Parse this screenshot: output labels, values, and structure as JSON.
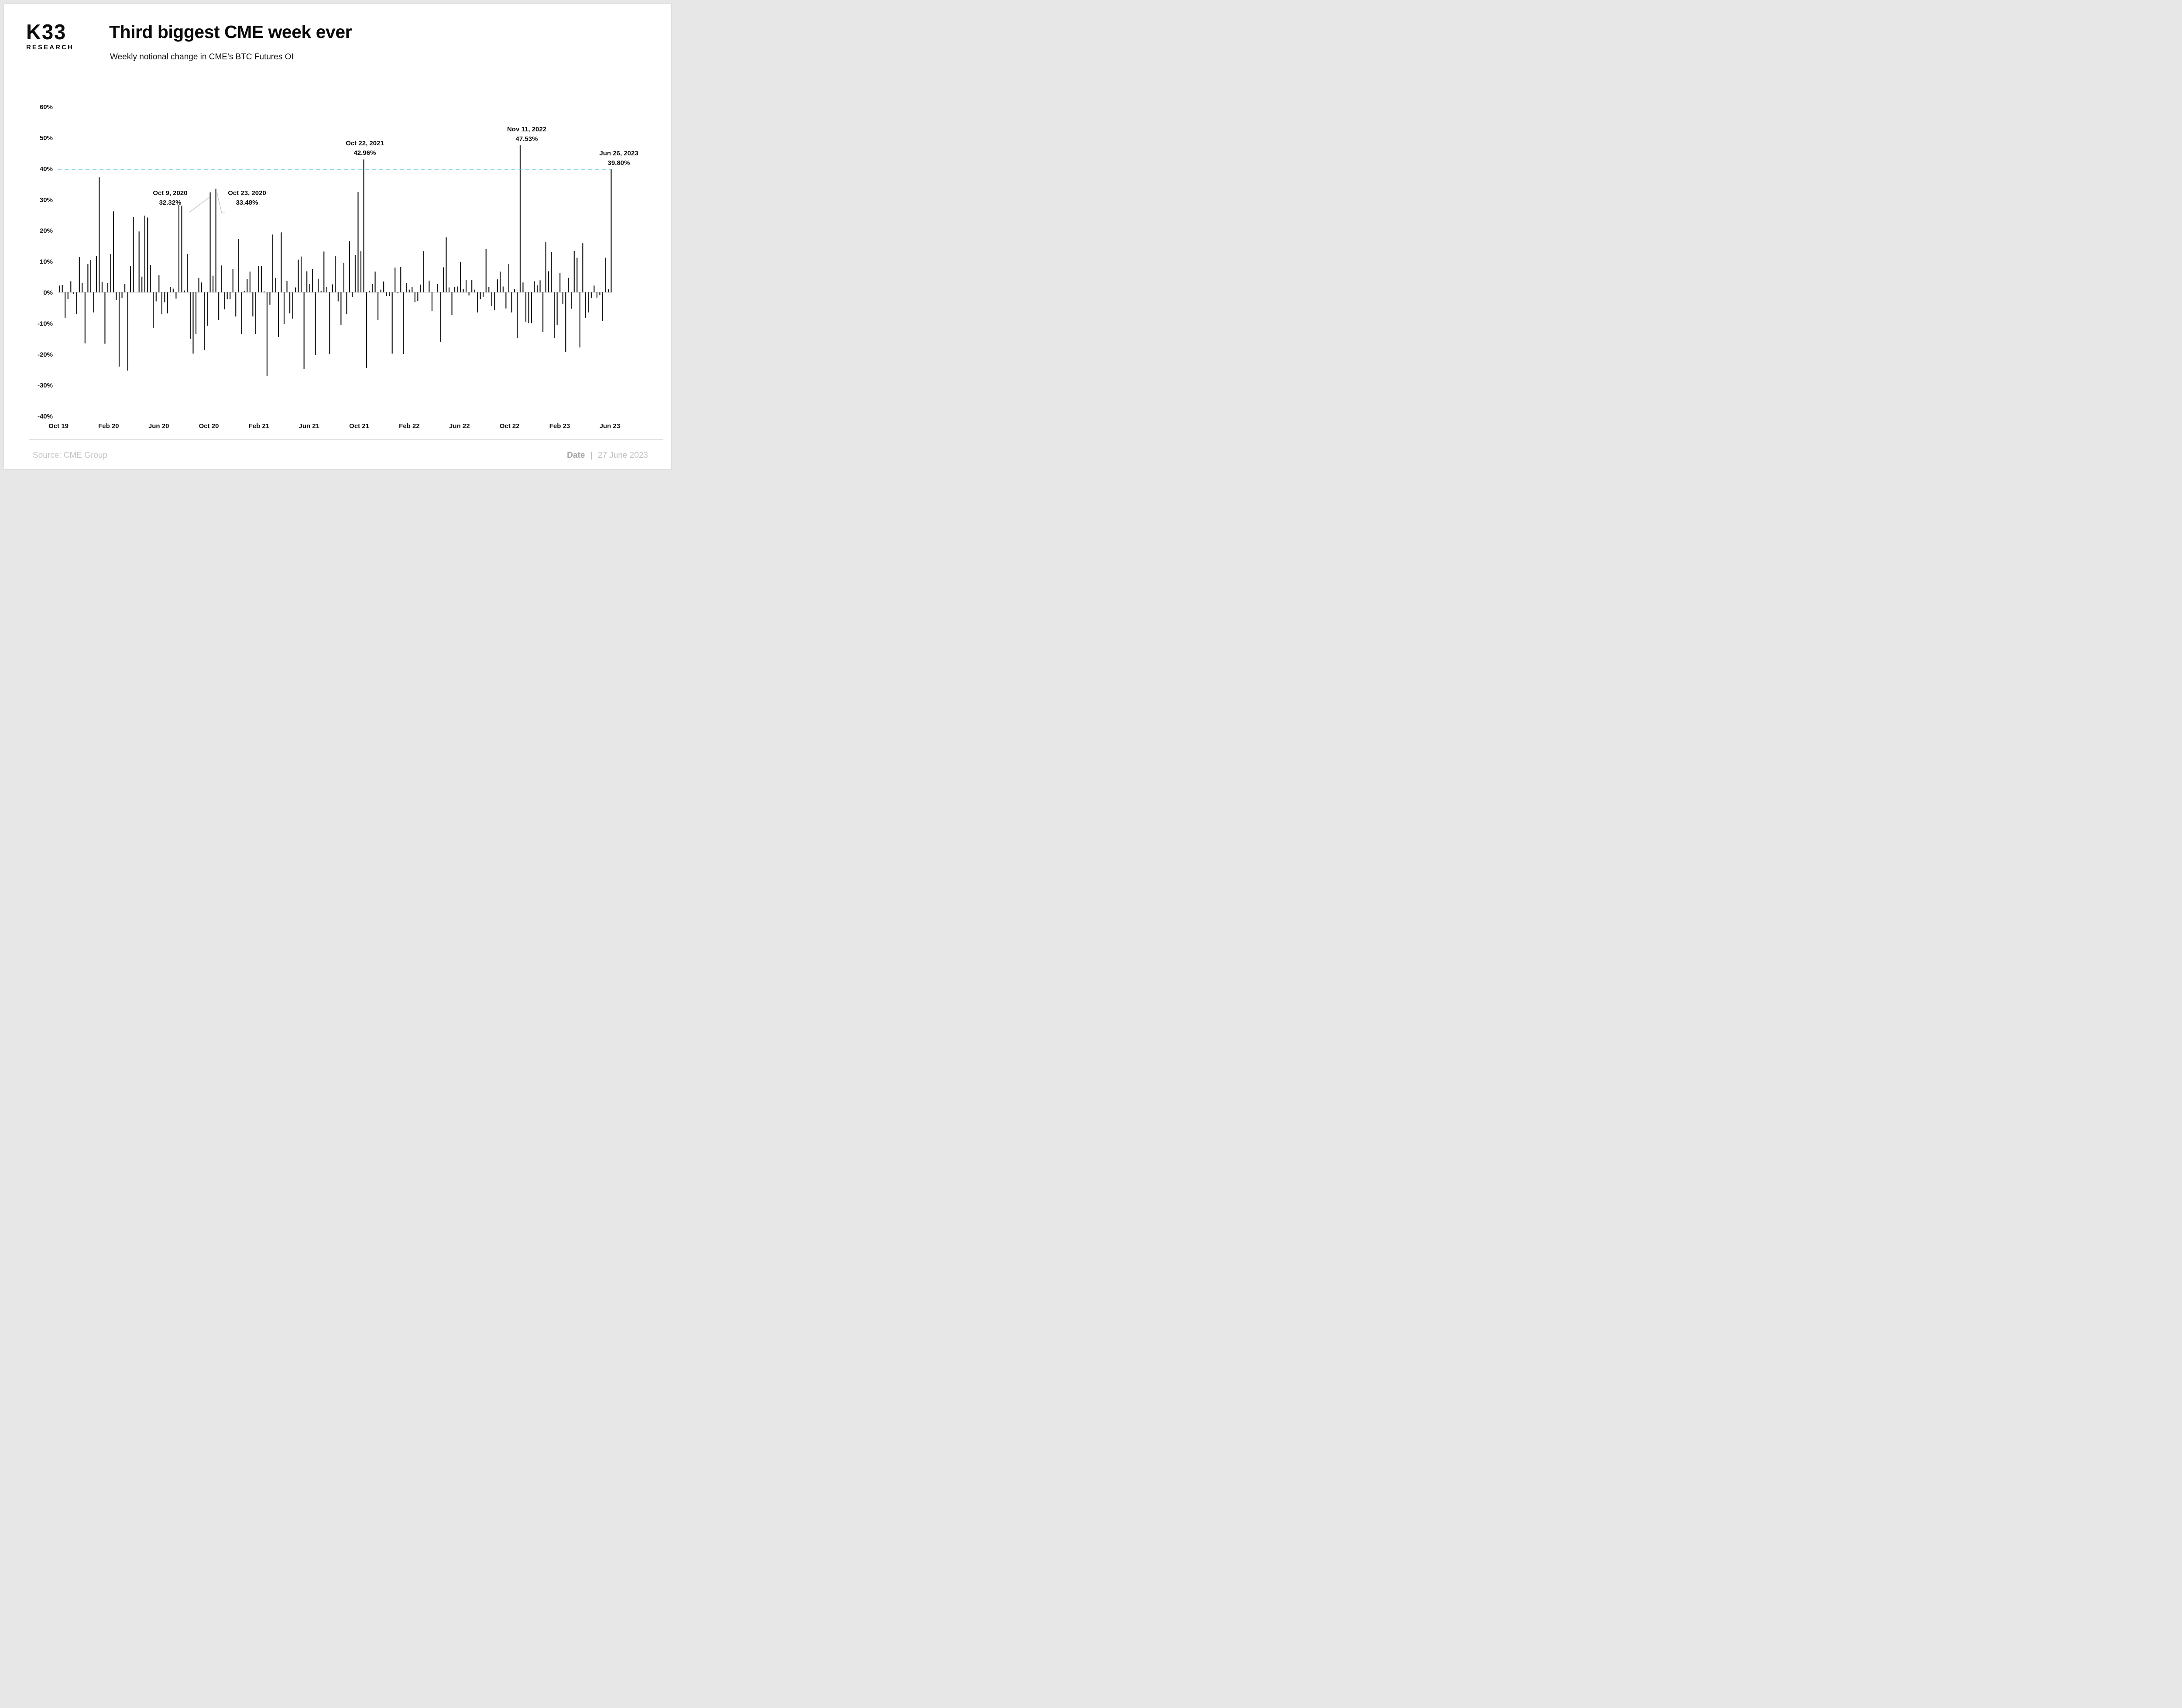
{
  "header": {
    "logo_line1": "K33",
    "logo_line2": "RESEARCH",
    "title": "Third biggest CME week ever",
    "subtitle": "Weekly notional change in CME’s BTC Futures OI"
  },
  "footer": {
    "source": "Source: CME Group",
    "date_label": "Date",
    "separator": "|",
    "date_value": "27 June 2023"
  },
  "chart_data": {
    "type": "bar",
    "title": "Third biggest CME week ever",
    "subtitle": "Weekly notional change in CME's BTC Futures OI",
    "frequency": "weekly",
    "x_tick_labels": [
      "Oct 19",
      "Feb 20",
      "Jun 20",
      "Oct 20",
      "Feb 21",
      "Jun 21",
      "Oct 21",
      "Feb 22",
      "Jun 22",
      "Oct 22",
      "Feb 23",
      "Jun 23"
    ],
    "y_tick_labels": [
      "60%",
      "50%",
      "40%",
      "30%",
      "20%",
      "10%",
      "0%",
      "-10%",
      "-20%",
      "-30%",
      "-40%"
    ],
    "y_tick_values": [
      60,
      50,
      40,
      30,
      20,
      10,
      0,
      -10,
      -20,
      -30,
      -40
    ],
    "ylim": [
      -40,
      60
    ],
    "grid": false,
    "bar_color": "#191919",
    "reference_line": {
      "value": 39.8,
      "style": "dashed",
      "color": "#55c3e8"
    },
    "values": [
      2.2,
      2.4,
      -8.2,
      -2.2,
      3.6,
      -0.5,
      -7,
      11.4,
      3,
      -16.5,
      9.2,
      10.5,
      -6.5,
      11.8,
      37.2,
      3.4,
      -16.6,
      3,
      12.4,
      26.2,
      -2.5,
      -24,
      -1.8,
      2.7,
      -25.3,
      8.6,
      24.4,
      0,
      19.7,
      5.1,
      24.8,
      24.2,
      8.9,
      -11.5,
      -2.9,
      5.5,
      -7,
      -3.2,
      -6.8,
      1.7,
      1.2,
      -2,
      28.2,
      28,
      0.6,
      12.4,
      -15,
      -19.8,
      -13.5,
      4.7,
      3.2,
      -18.6,
      -10.8,
      32.32,
      5.4,
      33.48,
      -9,
      8.7,
      -5.5,
      -2.2,
      -2.2,
      7.5,
      -7.8,
      17.3,
      -13.5,
      0.4,
      4.3,
      6.7,
      -7.8,
      -13.4,
      8.5,
      8.5,
      0.3,
      -27,
      -4,
      18.7,
      4.7,
      -14.5,
      19.4,
      -10.2,
      3.7,
      -6.8,
      -8.5,
      1.6,
      10.6,
      11.6,
      -24.8,
      6.8,
      2.7,
      7.6,
      -20.3,
      4.4,
      0.5,
      13.2,
      1.8,
      -20,
      2.6,
      11.7,
      -2.9,
      -10.5,
      9.5,
      -7,
      16.5,
      -1.5,
      12.1,
      32.4,
      13.3,
      42.96,
      -24.5,
      0.5,
      2.7,
      6.7,
      -9,
      0.9,
      3.5,
      -1.2,
      -1.2,
      -19.8,
      8,
      -0.3,
      8.2,
      -19.9,
      3.1,
      0.9,
      1.8,
      -3.2,
      -2.8,
      2.5,
      13.3,
      0,
      3.8,
      -6,
      0,
      2.7,
      -16,
      8.1,
      17.8,
      1.6,
      -7.3,
      1.8,
      1.9,
      9.8,
      1,
      4.1,
      -1,
      4,
      0.9,
      -6.5,
      -2.2,
      -1.4,
      14,
      1.8,
      -4.5,
      -5.8,
      4.2,
      6.7,
      1.9,
      -5.2,
      9.2,
      -6.5,
      1,
      -14.8,
      47.53,
      3.2,
      -9.5,
      -10,
      -10,
      3.6,
      2.3,
      3.9,
      -12.8,
      16.2,
      6.8,
      13,
      -14.7,
      -10.5,
      6.3,
      -3.7,
      -19.3,
      4.7,
      -5.3,
      13.4,
      11.2,
      -17.8,
      15.9,
      -8.2,
      -6.5,
      -1.8,
      2.2,
      -1.7,
      -0.9,
      -9.3,
      11.2,
      1,
      39.8
    ],
    "annotations": [
      {
        "date": "Oct 9, 2020",
        "value_label": "32.32%",
        "week_index": 53,
        "value": 32.32
      },
      {
        "date": "Oct 23, 2020",
        "value_label": "33.48%",
        "week_index": 55,
        "value": 33.48
      },
      {
        "date": "Oct 22, 2021",
        "value_label": "42.96%",
        "week_index": 107,
        "value": 42.96
      },
      {
        "date": "Nov 11, 2022",
        "value_label": "47.53%",
        "week_index": 162,
        "value": 47.53
      },
      {
        "date": "Jun 26, 2023",
        "value_label": "39.80%",
        "week_index": 194,
        "value": 39.8
      }
    ]
  }
}
